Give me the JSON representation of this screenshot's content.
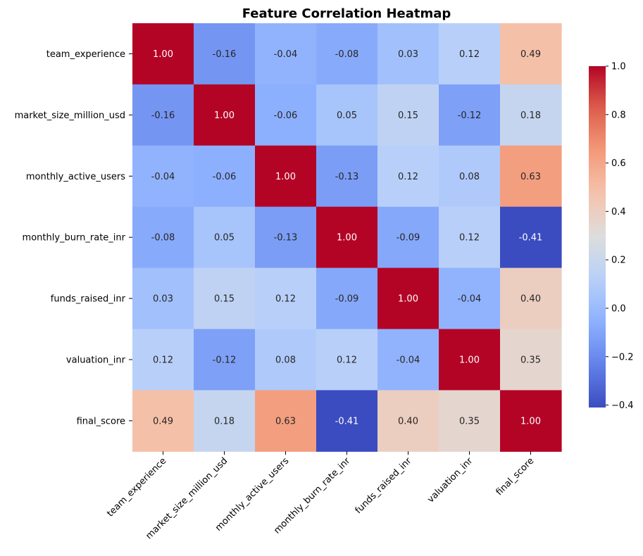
{
  "chart_data": {
    "type": "heatmap",
    "title": "Feature Correlation Heatmap",
    "rows": [
      "team_experience",
      "market_size_million_usd",
      "monthly_active_users",
      "monthly_burn_rate_inr",
      "funds_raised_inr",
      "valuation_inr",
      "final_score"
    ],
    "columns": [
      "team_experience",
      "market_size_million_usd",
      "monthly_active_users",
      "monthly_burn_rate_inr",
      "funds_raised_inr",
      "valuation_inr",
      "final_score"
    ],
    "values": [
      [
        1.0,
        -0.16,
        -0.04,
        -0.08,
        0.03,
        0.12,
        0.49
      ],
      [
        -0.16,
        1.0,
        -0.06,
        0.05,
        0.15,
        -0.12,
        0.18
      ],
      [
        -0.04,
        -0.06,
        1.0,
        -0.13,
        0.12,
        0.08,
        0.63
      ],
      [
        -0.08,
        0.05,
        -0.13,
        1.0,
        -0.09,
        0.12,
        -0.41
      ],
      [
        0.03,
        0.15,
        0.12,
        -0.09,
        1.0,
        -0.04,
        0.4
      ],
      [
        0.12,
        -0.12,
        0.08,
        0.12,
        -0.04,
        1.0,
        0.35
      ],
      [
        0.49,
        0.18,
        0.63,
        -0.41,
        0.4,
        0.35,
        1.0
      ]
    ],
    "value_format": "2 decimals",
    "colormap": "coolwarm",
    "color_range": [
      -0.41,
      1.0
    ],
    "colorbar": {
      "ticks": [
        1.0,
        0.8,
        0.6,
        0.4,
        0.2,
        0.0,
        -0.2,
        -0.4
      ],
      "tick_labels": [
        "1.0",
        "0.8",
        "0.6",
        "0.4",
        "0.2",
        "0.0",
        "−0.2",
        "−0.4"
      ],
      "placement": "right"
    },
    "x_tick_rotation": "45 degrees",
    "grid": false
  }
}
